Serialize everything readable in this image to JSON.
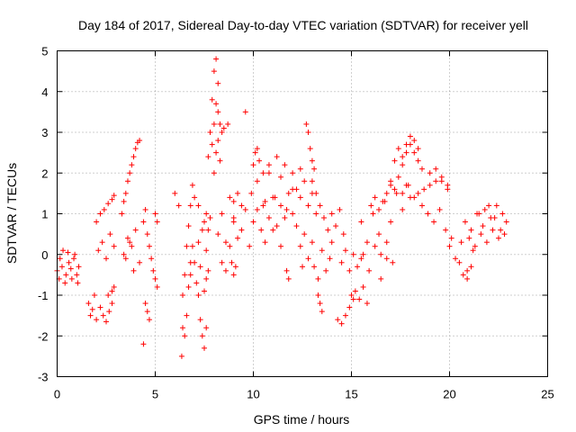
{
  "chart_data": {
    "type": "scatter",
    "title": "Day 184 of 2017, Sidereal Day-to-day VTEC variation (SDTVAR) for receiver yell",
    "xlabel": "GPS time / hours",
    "ylabel": "SDTVAR / TECUs",
    "xlim": [
      0,
      25
    ],
    "ylim": [
      -3,
      5
    ],
    "xticks": [
      0,
      5,
      10,
      15,
      20,
      25
    ],
    "yticks": [
      -3,
      -2,
      -1,
      0,
      1,
      2,
      3,
      4,
      5
    ],
    "xtick_labels": [
      "0",
      "5",
      "10",
      "15",
      "20",
      "25"
    ],
    "ytick_labels": [
      "-3",
      "-2",
      "-1",
      "0",
      "1",
      "2",
      "3",
      "4",
      "5"
    ],
    "grid": true,
    "marker": "+",
    "marker_color": "#ff0000",
    "series": [
      {
        "name": "SDTVAR",
        "segments": [
          {
            "x": [
              0.0,
              0.15,
              0.3,
              0.45,
              0.6,
              0.75,
              0.9,
              1.05
            ],
            "y": [
              -0.4,
              -0.1,
              0.1,
              -0.5,
              -0.2,
              -0.6,
              0.0,
              -0.7
            ]
          },
          {
            "x": [
              0.1,
              0.25,
              0.4,
              0.55,
              0.7,
              0.85,
              1.0,
              1.1
            ],
            "y": [
              -0.6,
              -0.3,
              -0.7,
              0.05,
              -0.35,
              -0.1,
              -0.5,
              -0.3
            ]
          },
          {
            "x": [
              1.6,
              1.7,
              1.8,
              1.9,
              2.0
            ],
            "y": [
              -1.2,
              -1.5,
              -1.35,
              -1.0,
              -1.6
            ]
          },
          {
            "x": [
              2.1,
              2.3,
              2.5,
              2.7,
              2.9
            ],
            "y": [
              0.1,
              0.3,
              -0.1,
              0.5,
              0.2
            ]
          },
          {
            "x": [
              2.0,
              2.2,
              2.4,
              2.6,
              2.8,
              2.9
            ],
            "y": [
              0.8,
              1.0,
              1.1,
              1.25,
              1.35,
              1.45
            ]
          },
          {
            "x": [
              2.2,
              2.35,
              2.5,
              2.65,
              2.8
            ],
            "y": [
              -1.3,
              -1.5,
              -1.65,
              -1.4,
              -1.2
            ]
          },
          {
            "x": [
              2.6,
              2.8,
              2.9
            ],
            "y": [
              -1.0,
              -0.9,
              -0.8
            ]
          },
          {
            "x": [
              3.3,
              3.4,
              3.5,
              3.6,
              3.7,
              3.8,
              3.9,
              4.0,
              4.1,
              4.2
            ],
            "y": [
              1.0,
              1.3,
              1.5,
              1.8,
              2.0,
              2.2,
              2.4,
              2.6,
              2.75,
              2.8
            ]
          },
          {
            "x": [
              3.4,
              3.6,
              3.8,
              4.0,
              4.2
            ],
            "y": [
              0.0,
              0.4,
              0.2,
              0.6,
              -0.2
            ]
          },
          {
            "x": [
              3.5,
              3.7,
              3.9
            ],
            "y": [
              -0.1,
              0.3,
              -0.4
            ]
          },
          {
            "x": [
              4.4,
              4.5,
              4.6,
              4.7,
              4.8
            ],
            "y": [
              0.8,
              1.1,
              0.5,
              0.2,
              -0.1
            ]
          },
          {
            "x": [
              4.5,
              4.6,
              4.7
            ],
            "y": [
              -1.2,
              -1.4,
              -1.6
            ]
          },
          {
            "x": [
              4.4
            ],
            "y": [
              -2.2
            ]
          },
          {
            "x": [
              4.9,
              5.0,
              5.1
            ],
            "y": [
              -0.4,
              -0.6,
              -0.8
            ]
          },
          {
            "x": [
              5.0,
              5.1
            ],
            "y": [
              1.0,
              0.8
            ]
          },
          {
            "x": [
              6.0,
              6.2
            ],
            "y": [
              1.5,
              1.2
            ]
          },
          {
            "x": [
              6.4,
              6.5,
              6.6,
              6.7,
              6.8,
              6.9
            ],
            "y": [
              -1.0,
              -0.5,
              0.2,
              0.7,
              1.2,
              1.7
            ]
          },
          {
            "x": [
              6.4,
              6.5,
              6.6,
              6.7,
              6.8
            ],
            "y": [
              -1.8,
              -2.0,
              -1.5,
              -0.8,
              -0.2
            ]
          },
          {
            "x": [
              6.8,
              7.0,
              7.2,
              7.4,
              7.6,
              7.7
            ],
            "y": [
              -0.5,
              -0.2,
              0.3,
              0.6,
              0.1,
              -0.4
            ]
          },
          {
            "x": [
              6.9,
              7.1,
              7.3,
              7.5,
              7.6
            ],
            "y": [
              0.2,
              -0.7,
              -0.3,
              -0.9,
              -0.6
            ]
          },
          {
            "x": [
              7.2,
              7.3,
              7.4,
              7.5,
              7.6
            ],
            "y": [
              -1.0,
              -1.6,
              -2.0,
              -2.3,
              -1.8
            ]
          },
          {
            "x": [
              7.0,
              7.2
            ],
            "y": [
              1.4,
              1.2
            ]
          },
          {
            "x": [
              6.35
            ],
            "y": [
              -2.5
            ]
          },
          {
            "x": [
              7.5,
              7.6,
              7.7,
              7.8
            ],
            "y": [
              0.8,
              1.0,
              0.6,
              0.9
            ]
          },
          {
            "x": [
              7.7,
              7.8,
              7.9,
              8.0,
              8.1,
              8.2
            ],
            "y": [
              2.4,
              3.0,
              3.8,
              4.5,
              4.8,
              4.2
            ]
          },
          {
            "x": [
              7.9,
              8.0,
              8.1,
              8.2,
              8.3,
              8.4
            ],
            "y": [
              2.7,
              3.2,
              3.7,
              3.5,
              3.2,
              3.0
            ]
          },
          {
            "x": [
              8.0,
              8.1,
              8.2,
              8.3
            ],
            "y": [
              2.0,
              2.5,
              2.8,
              2.3
            ]
          },
          {
            "x": [
              8.2,
              8.4,
              8.6,
              8.8,
              9.0
            ],
            "y": [
              0.5,
              1.0,
              0.3,
              1.4,
              0.8
            ]
          },
          {
            "x": [
              8.4,
              8.6,
              8.8
            ],
            "y": [
              -0.2,
              -0.4,
              0.2
            ]
          },
          {
            "x": [
              8.5,
              8.7
            ],
            "y": [
              3.1,
              3.2
            ]
          },
          {
            "x": [
              9.0,
              9.2,
              9.4,
              9.6,
              9.8
            ],
            "y": [
              0.9,
              0.4,
              0.6,
              1.1,
              0.2
            ]
          },
          {
            "x": [
              8.9,
              9.0,
              9.1
            ],
            "y": [
              -0.2,
              -0.5,
              -0.3
            ]
          },
          {
            "x": [
              9.0,
              9.2,
              9.4
            ],
            "y": [
              1.3,
              1.5,
              1.2
            ]
          },
          {
            "x": [
              9.6
            ],
            "y": [
              3.5
            ]
          },
          {
            "x": [
              9.9,
              10.2,
              10.5,
              10.8,
              11.1,
              11.4,
              11.7,
              12.0
            ],
            "y": [
              1.5,
              1.8,
              1.2,
              2.0,
              1.4,
              1.9,
              1.1,
              1.6
            ]
          },
          {
            "x": [
              10.0,
              10.2,
              10.4,
              10.6,
              10.8,
              11.0,
              11.2,
              11.4,
              11.6,
              11.8,
              12.0,
              12.2
            ],
            "y": [
              0.8,
              1.1,
              0.6,
              1.3,
              0.9,
              1.4,
              0.7,
              1.2,
              0.9,
              1.5,
              1.0,
              0.7
            ]
          },
          {
            "x": [
              10.0,
              10.1,
              10.2,
              10.3
            ],
            "y": [
              2.2,
              2.5,
              2.6,
              2.3
            ]
          },
          {
            "x": [
              10.5,
              10.8,
              11.2,
              11.6,
              12.0,
              12.4
            ],
            "y": [
              2.0,
              2.2,
              2.4,
              2.2,
              2.0,
              2.1
            ]
          },
          {
            "x": [
              10.6,
              11.0,
              11.4
            ],
            "y": [
              0.3,
              0.6,
              0.2
            ]
          },
          {
            "x": [
              11.7,
              11.8
            ],
            "y": [
              -0.4,
              -0.6
            ]
          },
          {
            "x": [
              12.2,
              12.4,
              12.6,
              12.8,
              13.0,
              13.2
            ],
            "y": [
              1.6,
              1.4,
              1.8,
              1.2,
              1.5,
              1.0
            ]
          },
          {
            "x": [
              12.4,
              12.6,
              12.8,
              13.0
            ],
            "y": [
              0.2,
              0.5,
              -0.1,
              0.3
            ]
          },
          {
            "x": [
              12.5
            ],
            "y": [
              -0.3
            ]
          },
          {
            "x": [
              12.7,
              12.8,
              12.9,
              13.0,
              13.1
            ],
            "y": [
              3.2,
              3.0,
              2.6,
              2.3,
              2.1
            ]
          },
          {
            "x": [
              13.0,
              13.2,
              13.4,
              13.6,
              13.8,
              14.0
            ],
            "y": [
              1.8,
              1.5,
              1.2,
              0.9,
              0.6,
              0.3
            ]
          },
          {
            "x": [
              13.1,
              13.3,
              13.5,
              13.7,
              13.9
            ],
            "y": [
              -0.3,
              -0.6,
              0.1,
              -0.4,
              -0.1
            ]
          },
          {
            "x": [
              13.3,
              13.4,
              13.5
            ],
            "y": [
              -1.0,
              -1.2,
              -1.4
            ]
          },
          {
            "x": [
              14.0,
              14.2,
              14.4,
              14.6
            ],
            "y": [
              1.0,
              0.7,
              1.1,
              0.5
            ]
          },
          {
            "x": [
              14.3,
              14.5,
              14.7,
              14.9,
              15.1
            ],
            "y": [
              -1.6,
              -1.7,
              -1.5,
              -1.3,
              -1.1
            ]
          },
          {
            "x": [
              14.5,
              14.7,
              14.9,
              15.1,
              15.3,
              15.5
            ],
            "y": [
              -0.2,
              0.1,
              -0.4,
              0.0,
              -0.3,
              -0.1
            ]
          },
          {
            "x": [
              15.0,
              15.2,
              15.4,
              15.6,
              15.8
            ],
            "y": [
              -1.0,
              -0.9,
              -1.1,
              -0.8,
              -1.2
            ]
          },
          {
            "x": [
              15.5,
              15.8,
              16.1,
              16.4,
              16.7,
              17.0,
              17.3,
              17.6,
              17.9,
              18.2
            ],
            "y": [
              0.8,
              0.3,
              1.0,
              0.5,
              1.3,
              0.8,
              1.5,
              1.1,
              1.7,
              1.4
            ]
          },
          {
            "x": [
              15.6,
              15.9,
              16.2,
              16.5,
              16.8
            ],
            "y": [
              0.0,
              -0.4,
              0.2,
              -0.6,
              -0.1
            ]
          },
          {
            "x": [
              16.0,
              16.2,
              16.4,
              16.6
            ],
            "y": [
              1.2,
              1.4,
              1.1,
              1.3
            ]
          },
          {
            "x": [
              16.5,
              16.8,
              17.1
            ],
            "y": [
              0.0,
              0.3,
              -0.2
            ]
          },
          {
            "x": [
              16.8,
              17.0,
              17.2,
              17.4,
              17.6,
              17.8,
              18.0,
              18.2,
              18.4
            ],
            "y": [
              1.5,
              1.7,
              2.3,
              2.6,
              2.4,
              2.7,
              2.9,
              2.8,
              2.6
            ]
          },
          {
            "x": [
              17.6,
              17.8,
              18.0,
              18.2,
              18.4,
              18.6
            ],
            "y": [
              2.2,
              2.5,
              2.7,
              2.5,
              2.3,
              2.1
            ]
          },
          {
            "x": [
              17.0,
              17.2,
              17.4,
              17.6,
              17.8,
              18.0
            ],
            "y": [
              1.8,
              1.6,
              1.9,
              1.5,
              1.7,
              1.4
            ]
          },
          {
            "x": [
              18.4,
              18.7,
              19.0,
              19.3,
              19.6,
              19.9
            ],
            "y": [
              1.5,
              1.6,
              1.7,
              1.8,
              1.9,
              1.7
            ]
          },
          {
            "x": [
              18.6,
              18.9,
              19.2,
              19.5,
              19.8,
              20.1
            ],
            "y": [
              1.2,
              1.0,
              0.8,
              1.1,
              0.6,
              0.4
            ]
          },
          {
            "x": [
              19.0,
              19.3,
              19.6,
              19.9
            ],
            "y": [
              2.0,
              2.1,
              1.8,
              1.6
            ]
          },
          {
            "x": [
              20.0,
              20.3,
              20.6,
              20.9,
              21.2
            ],
            "y": [
              0.2,
              -0.1,
              0.3,
              -0.4,
              0.1
            ]
          },
          {
            "x": [
              20.5,
              20.7,
              20.9,
              21.1
            ],
            "y": [
              -0.2,
              -0.5,
              -0.6,
              -0.3
            ]
          },
          {
            "x": [
              20.8,
              21.1,
              21.4,
              21.7,
              22.0,
              22.3,
              22.6,
              22.9
            ],
            "y": [
              0.8,
              0.6,
              1.0,
              0.7,
              1.2,
              0.9,
              0.6,
              0.8
            ]
          },
          {
            "x": [
              21.0,
              21.3,
              21.6,
              21.9,
              22.2,
              22.5,
              22.8
            ],
            "y": [
              0.4,
              0.2,
              0.5,
              0.3,
              0.6,
              0.4,
              0.5
            ]
          },
          {
            "x": [
              21.5,
              21.8,
              22.1,
              22.4,
              22.7
            ],
            "y": [
              1.0,
              1.1,
              0.9,
              1.2,
              1.0
            ]
          }
        ]
      }
    ]
  }
}
